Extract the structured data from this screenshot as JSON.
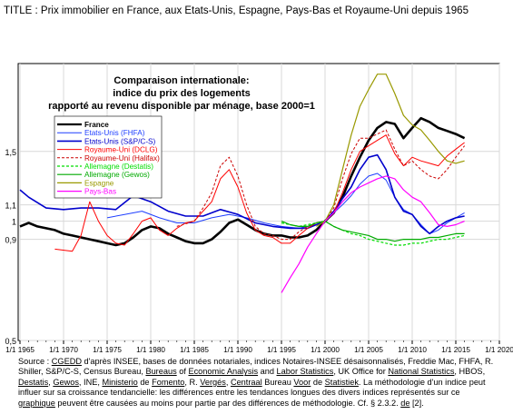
{
  "page_title": "TITLE : Prix immobilier en France, aux Etats-Unis,  Espagne, Pays-Bas  et Royaume-Uni depuis 1965",
  "chart_data": {
    "type": "line",
    "title_lines": [
      "Comparaison internationale:",
      "indice du prix des logements",
      "rapporté au revenu disponible par ménage, base 2000=1"
    ],
    "xlabel": "",
    "ylabel": "",
    "y_scale": "log",
    "xlim": [
      1965,
      2020
    ],
    "ylim": [
      0.5,
      2.5
    ],
    "x_ticks": [
      "1/1 1965",
      "1/1 1970",
      "1/1 1975",
      "1/1 1980",
      "1/1 1985",
      "1/1 1990",
      "1/1 1995",
      "1/1 2000",
      "1/1 2005",
      "1/1 2010",
      "1/1 2015",
      "1/1 2020"
    ],
    "y_ticks": [
      "0,5",
      "0,9",
      "1",
      "1,1",
      "1,5"
    ],
    "grid": true,
    "legend_position": "top-left",
    "series": [
      {
        "name": "France",
        "color": "#000000",
        "style": "solid",
        "width": 2.6,
        "x": [
          1965,
          1966,
          1967,
          1968,
          1969,
          1970,
          1971,
          1972,
          1973,
          1974,
          1975,
          1976,
          1977,
          1978,
          1979,
          1980,
          1981,
          1982,
          1983,
          1984,
          1985,
          1986,
          1987,
          1988,
          1989,
          1990,
          1991,
          1992,
          1993,
          1994,
          1995,
          1996,
          1997,
          1998,
          1999,
          2000,
          2001,
          2002,
          2003,
          2004,
          2005,
          2006,
          2007,
          2008,
          2009,
          2010,
          2011,
          2012,
          2013,
          2014,
          2015,
          2016
        ],
        "y": [
          0.97,
          0.99,
          0.97,
          0.96,
          0.95,
          0.93,
          0.92,
          0.91,
          0.9,
          0.89,
          0.88,
          0.87,
          0.88,
          0.91,
          0.95,
          0.97,
          0.96,
          0.93,
          0.91,
          0.89,
          0.88,
          0.88,
          0.9,
          0.94,
          0.99,
          1.01,
          0.98,
          0.95,
          0.93,
          0.92,
          0.92,
          0.91,
          0.91,
          0.92,
          0.95,
          1.0,
          1.05,
          1.15,
          1.3,
          1.45,
          1.6,
          1.72,
          1.78,
          1.76,
          1.62,
          1.72,
          1.82,
          1.78,
          1.72,
          1.69,
          1.66,
          1.62
        ]
      },
      {
        "name": "Etats-Unis (FHFA)",
        "color": "#1f3fff",
        "style": "solid",
        "width": 1,
        "x": [
          1975,
          1977,
          1979,
          1981,
          1983,
          1985,
          1987,
          1989,
          1991,
          1993,
          1995,
          1997,
          1999,
          2000,
          2001,
          2002,
          2003,
          2004,
          2005,
          2006,
          2007,
          2008,
          2009,
          2010,
          2011,
          2012,
          2013,
          2014,
          2015,
          2016
        ],
        "y": [
          1.02,
          1.04,
          1.06,
          1.02,
          0.99,
          0.99,
          1.02,
          1.04,
          1.02,
          0.99,
          0.97,
          0.96,
          0.98,
          1.0,
          1.05,
          1.1,
          1.16,
          1.24,
          1.3,
          1.32,
          1.27,
          1.15,
          1.07,
          1.04,
          0.98,
          0.93,
          0.95,
          0.99,
          1.02,
          1.05
        ]
      },
      {
        "name": "Etats-Unis (S&P/C-S)",
        "color": "#0000cc",
        "style": "solid",
        "width": 1.6,
        "x": [
          1965,
          1966,
          1968,
          1970,
          1972,
          1974,
          1976,
          1978,
          1980,
          1982,
          1984,
          1986,
          1988,
          1990,
          1992,
          1994,
          1996,
          1998,
          2000,
          2001,
          2002,
          2003,
          2004,
          2005,
          2006,
          2007,
          2008,
          2009,
          2010,
          2011,
          2012,
          2013,
          2014,
          2015,
          2016
        ],
        "y": [
          1.2,
          1.15,
          1.08,
          1.07,
          1.08,
          1.08,
          1.07,
          1.16,
          1.12,
          1.06,
          1.03,
          1.03,
          1.07,
          1.04,
          0.99,
          0.97,
          0.96,
          0.96,
          1.0,
          1.06,
          1.14,
          1.22,
          1.35,
          1.45,
          1.47,
          1.35,
          1.15,
          1.06,
          1.04,
          0.97,
          0.93,
          0.97,
          1.0,
          1.02,
          1.03
        ]
      },
      {
        "name": "Royaume-Uni (DCLG)",
        "color": "#ff0000",
        "style": "solid",
        "width": 1,
        "x": [
          1969,
          1971,
          1972,
          1973,
          1974,
          1975,
          1976,
          1977,
          1978,
          1979,
          1980,
          1981,
          1982,
          1983,
          1984,
          1985,
          1986,
          1987,
          1988,
          1989,
          1990,
          1991,
          1992,
          1993,
          1994,
          1995,
          1996,
          1997,
          1998,
          1999,
          2000,
          2001,
          2002,
          2003,
          2004,
          2005,
          2006,
          2007,
          2008,
          2009,
          2010,
          2011,
          2012,
          2013,
          2014,
          2015,
          2016
        ],
        "y": [
          0.85,
          0.84,
          0.92,
          1.12,
          1.0,
          0.92,
          0.88,
          0.87,
          0.93,
          1.0,
          1.02,
          0.95,
          0.92,
          0.96,
          0.99,
          1.0,
          1.06,
          1.12,
          1.28,
          1.35,
          1.22,
          1.05,
          0.95,
          0.92,
          0.91,
          0.88,
          0.88,
          0.92,
          0.96,
          0.99,
          1.0,
          1.05,
          1.18,
          1.35,
          1.5,
          1.55,
          1.6,
          1.65,
          1.48,
          1.38,
          1.45,
          1.42,
          1.4,
          1.38,
          1.46,
          1.52,
          1.58
        ]
      },
      {
        "name": "Royaume-Uni (Halifax)",
        "color": "#cc0000",
        "style": "dashed",
        "width": 1,
        "x": [
          1983,
          1985,
          1986,
          1987,
          1988,
          1989,
          1990,
          1991,
          1992,
          1993,
          1994,
          1995,
          1996,
          1997,
          1998,
          1999,
          2000,
          2001,
          2002,
          2003,
          2004,
          2005,
          2006,
          2007,
          2008,
          2009,
          2010,
          2011,
          2012,
          2013,
          2014,
          2015,
          2016
        ],
        "y": [
          0.97,
          1.0,
          1.08,
          1.18,
          1.38,
          1.45,
          1.3,
          1.1,
          0.97,
          0.93,
          0.92,
          0.9,
          0.9,
          0.94,
          0.97,
          0.99,
          1.0,
          1.08,
          1.28,
          1.48,
          1.62,
          1.62,
          1.66,
          1.7,
          1.52,
          1.38,
          1.42,
          1.35,
          1.3,
          1.28,
          1.35,
          1.45,
          1.55
        ]
      },
      {
        "name": "Allemagne (Destatis)",
        "color": "#00dd00",
        "style": "dashed",
        "width": 1.2,
        "x": [
          1995,
          1996,
          1997,
          1998,
          1999,
          2000,
          2001,
          2002,
          2003,
          2004,
          2005,
          2006,
          2007,
          2008,
          2009,
          2010,
          2011,
          2012,
          2013,
          2014,
          2015,
          2016
        ],
        "y": [
          0.99,
          0.98,
          0.97,
          0.98,
          0.99,
          1.0,
          0.97,
          0.95,
          0.93,
          0.92,
          0.9,
          0.89,
          0.88,
          0.87,
          0.87,
          0.88,
          0.88,
          0.89,
          0.9,
          0.9,
          0.91,
          0.92
        ]
      },
      {
        "name": "Allemagne (Gewos)",
        "color": "#00aa00",
        "style": "solid",
        "width": 1.2,
        "x": [
          1995,
          1996,
          1997,
          1998,
          1999,
          2000,
          2001,
          2002,
          2003,
          2004,
          2005,
          2006,
          2007,
          2008,
          2009,
          2010,
          2011,
          2012,
          2013,
          2014,
          2015,
          2016
        ],
        "y": [
          1.0,
          0.98,
          0.97,
          0.97,
          0.99,
          1.0,
          0.97,
          0.95,
          0.94,
          0.93,
          0.92,
          0.9,
          0.9,
          0.89,
          0.9,
          0.9,
          0.9,
          0.91,
          0.91,
          0.92,
          0.93,
          0.93
        ]
      },
      {
        "name": "Espagne",
        "color": "#999900",
        "style": "solid",
        "width": 1.2,
        "x": [
          1999,
          2000,
          2001,
          2002,
          2003,
          2004,
          2005,
          2006,
          2007,
          2008,
          2009,
          2010,
          2011,
          2012,
          2013,
          2014,
          2015,
          2016
        ],
        "y": [
          0.97,
          1.0,
          1.1,
          1.35,
          1.65,
          1.95,
          2.15,
          2.35,
          2.35,
          2.1,
          1.85,
          1.75,
          1.7,
          1.6,
          1.5,
          1.42,
          1.4,
          1.42
        ]
      },
      {
        "name": "Pays-Bas",
        "color": "#ff00ff",
        "style": "solid",
        "width": 1.2,
        "x": [
          1995,
          1996,
          1997,
          1998,
          1999,
          2000,
          2001,
          2002,
          2003,
          2004,
          2005,
          2006,
          2007,
          2008,
          2009,
          2010,
          2011,
          2012,
          2013,
          2014,
          2015,
          2016
        ],
        "y": [
          0.66,
          0.72,
          0.78,
          0.86,
          0.93,
          1.0,
          1.05,
          1.12,
          1.18,
          1.22,
          1.25,
          1.28,
          1.3,
          1.28,
          1.2,
          1.15,
          1.12,
          1.05,
          0.98,
          0.97,
          0.98,
          1.0
        ]
      }
    ]
  },
  "source_note": {
    "l1a": "Source : ",
    "l1b": "CGEDD",
    "l1c": " d'après INSEE,  bases de données notariales, indices Notaires-INSEE désaisonnalisés, Freddie Mac, FHFA, R.",
    "l2a": "Shiller, S&P/C-S, Census Bureau, ",
    "l2b": "Bureaus",
    "l2c": " of ",
    "l2d": "Economic Analysis",
    "l2e": " and ",
    "l2f": "Labor Statistics",
    "l2g": ", UK Office for ",
    "l2h": "National Statistics",
    "l2i": ", HBOS,",
    "l3a": "Destatis",
    "l3b": ", ",
    "l3c": "Gewos",
    "l3d": ", INE, ",
    "l3e": "Ministerio",
    "l3f": " de ",
    "l3g": "Fomento",
    "l3h": ", R. ",
    "l3i": "Vergés",
    "l3j": ", ",
    "l3k": "Centraal",
    "l3l": " Bureau ",
    "l3m": "Voor",
    "l3n": " de ",
    "l3o": "Statistiek",
    "l3p": ".  La méthodologie d'un indice peut",
    "l4": "influer sur sa croissance tendancielle: les différences entre les tendances longues des divers indices représentés sur ce",
    "l5a": "graphique",
    "l5b": " peuvent être causées au moins pour partie par des différences de méthodologie. Cf. § 2.3.2. ",
    "l5c": "de",
    "l5d": " [2]."
  }
}
